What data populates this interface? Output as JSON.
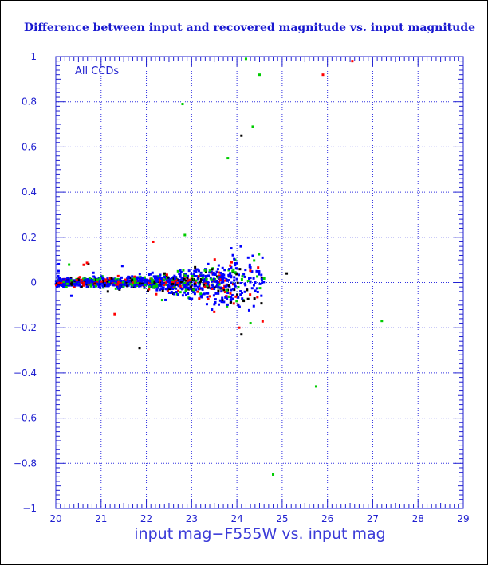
{
  "chart_data": {
    "type": "scatter",
    "title": "Difference between input and recovered magnitude vs. input magnitude",
    "xlabel": "input mag−F555W vs. input mag",
    "ylabel": "",
    "annotation": "All CCDs",
    "xlim": [
      20,
      29
    ],
    "ylim": [
      -1,
      1
    ],
    "x_ticks": [
      "20",
      "21",
      "22",
      "23",
      "24",
      "25",
      "26",
      "27",
      "28",
      "29"
    ],
    "y_ticks": [
      "1",
      "0.8",
      "0.6",
      "0.4",
      "0.2",
      "0",
      "−0.2",
      "−0.4",
      "−0.6",
      "−0.8",
      "−1"
    ],
    "grid": true,
    "colors": {
      "axis": "#2020d0",
      "grid": "#3030e0",
      "title": "#1a1ad0",
      "series": [
        "#0000ff",
        "#00cc00",
        "#ff0000",
        "#000000"
      ]
    },
    "series_points": [
      {
        "color": "#00cc00",
        "x": 24.2,
        "y": 0.99
      },
      {
        "color": "#ff0000",
        "x": 26.55,
        "y": 0.98
      },
      {
        "color": "#ff0000",
        "x": 25.9,
        "y": 0.92
      },
      {
        "color": "#00cc00",
        "x": 24.5,
        "y": 0.92
      },
      {
        "color": "#00cc00",
        "x": 22.8,
        "y": 0.79
      },
      {
        "color": "#00cc00",
        "x": 24.35,
        "y": 0.69
      },
      {
        "color": "#000000",
        "x": 24.1,
        "y": 0.65
      },
      {
        "color": "#00cc00",
        "x": 23.8,
        "y": 0.55
      },
      {
        "color": "#ff0000",
        "x": 22.15,
        "y": 0.18
      },
      {
        "color": "#00cc00",
        "x": 22.85,
        "y": 0.21
      },
      {
        "color": "#0000ff",
        "x": 24.25,
        "y": 0.11
      },
      {
        "color": "#000000",
        "x": 25.1,
        "y": 0.04
      },
      {
        "color": "#000000",
        "x": 21.15,
        "y": -0.04
      },
      {
        "color": "#ff0000",
        "x": 21.3,
        "y": -0.14
      },
      {
        "color": "#ff0000",
        "x": 23.5,
        "y": -0.13
      },
      {
        "color": "#ff0000",
        "x": 24.05,
        "y": -0.2
      },
      {
        "color": "#000000",
        "x": 24.1,
        "y": -0.23
      },
      {
        "color": "#00cc00",
        "x": 24.3,
        "y": -0.18
      },
      {
        "color": "#000000",
        "x": 21.85,
        "y": -0.29
      },
      {
        "color": "#00cc00",
        "x": 27.2,
        "y": -0.17
      },
      {
        "color": "#00cc00",
        "x": 25.75,
        "y": -0.46
      },
      {
        "color": "#00cc00",
        "x": 24.8,
        "y": -0.85
      }
    ],
    "dense_cluster": {
      "description_free": true,
      "x_range": [
        20,
        24.6
      ],
      "y_center": 0,
      "y_spread_start": 0.015,
      "y_spread_end": 0.12
    }
  }
}
